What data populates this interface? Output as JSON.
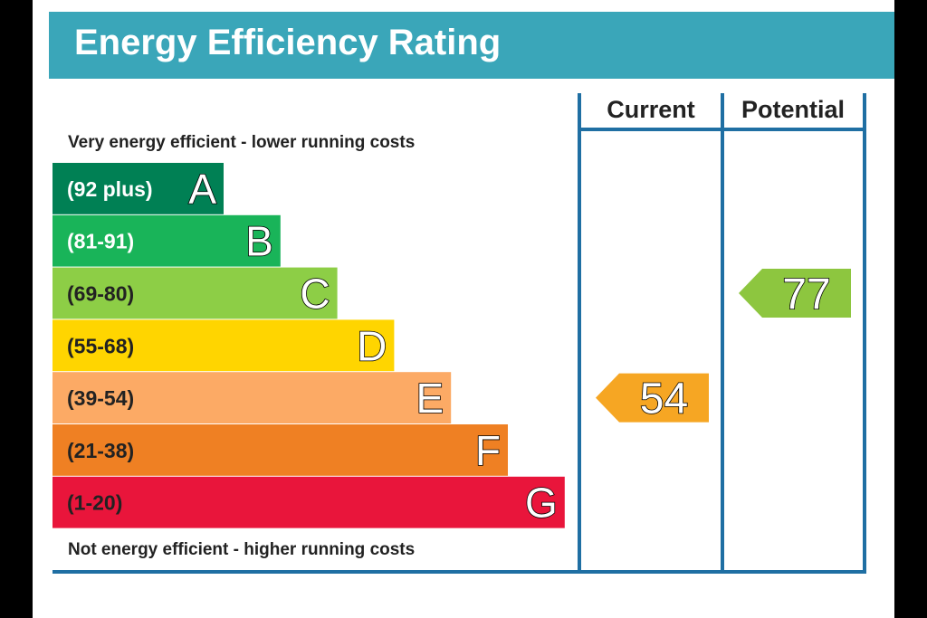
{
  "title": "Energy Efficiency Rating",
  "columns": {
    "current": "Current",
    "potential": "Potential"
  },
  "captions": {
    "top": "Very energy efficient - lower running costs",
    "bottom": "Not energy efficient - higher running costs"
  },
  "chart_data": {
    "type": "bar",
    "categories": [
      "A",
      "B",
      "C",
      "D",
      "E",
      "F",
      "G"
    ],
    "bands": [
      {
        "letter": "A",
        "range": "(92 plus)",
        "color": "#008054",
        "label_color": "#ffffff"
      },
      {
        "letter": "B",
        "range": "(81-91)",
        "color": "#19b459",
        "label_color": "#ffffff"
      },
      {
        "letter": "C",
        "range": "(69-80)",
        "color": "#8dce46",
        "label_color": "#222222"
      },
      {
        "letter": "D",
        "range": "(55-68)",
        "color": "#ffd500",
        "label_color": "#222222"
      },
      {
        "letter": "E",
        "range": "(39-54)",
        "color": "#fcaa65",
        "label_color": "#222222"
      },
      {
        "letter": "F",
        "range": "(21-38)",
        "color": "#ef8023",
        "label_color": "#222222"
      },
      {
        "letter": "G",
        "range": "(1-20)",
        "color": "#e9153b",
        "label_color": "#222222"
      }
    ],
    "current": {
      "value": 54,
      "band": "E",
      "color": "#f6a623"
    },
    "potential": {
      "value": 77,
      "band": "C",
      "color": "#8dc63f"
    }
  },
  "colors": {
    "title_bar": "#3aa6b9",
    "frame": "#1f6fa3"
  }
}
